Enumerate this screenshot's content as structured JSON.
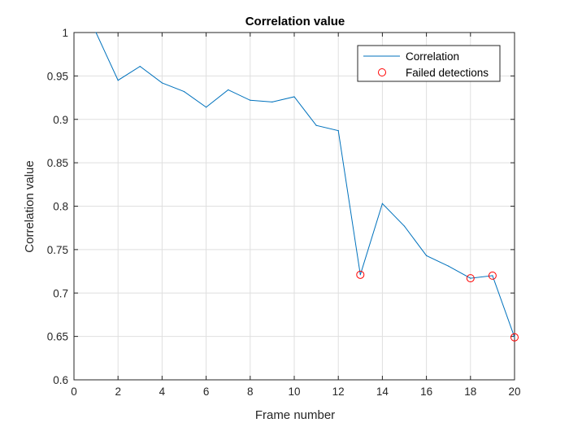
{
  "chart_data": {
    "type": "line",
    "title": "Correlation value",
    "xlabel": "Frame number",
    "ylabel": "Correlation value",
    "xlim": [
      0,
      20
    ],
    "ylim": [
      0.6,
      1
    ],
    "xticks": [
      0,
      2,
      4,
      6,
      8,
      10,
      12,
      14,
      16,
      18,
      20
    ],
    "yticks": [
      0.6,
      0.65,
      0.7,
      0.75,
      0.8,
      0.85,
      0.9,
      0.95,
      1
    ],
    "xtick_labels": [
      "0",
      "2",
      "4",
      "6",
      "8",
      "10",
      "12",
      "14",
      "16",
      "18",
      "20"
    ],
    "ytick_labels": [
      "0.6",
      "0.65",
      "0.7",
      "0.75",
      "0.8",
      "0.85",
      "0.9",
      "0.95",
      "1"
    ],
    "grid": true,
    "legend_position": "top-right",
    "series": [
      {
        "name": "Correlation",
        "style": "line",
        "color": "#0072bd",
        "x": [
          1,
          2,
          3,
          4,
          5,
          6,
          7,
          8,
          9,
          10,
          11,
          12,
          13,
          14,
          15,
          16,
          17,
          18,
          19,
          20
        ],
        "y": [
          1.0,
          0.945,
          0.961,
          0.942,
          0.932,
          0.914,
          0.934,
          0.922,
          0.92,
          0.926,
          0.893,
          0.887,
          0.721,
          0.803,
          0.777,
          0.743,
          0.731,
          0.717,
          0.72,
          0.649
        ]
      },
      {
        "name": "Failed detections",
        "style": "marker",
        "marker": "circle",
        "color": "#ff0000",
        "x": [
          13,
          18,
          19,
          20
        ],
        "y": [
          0.721,
          0.717,
          0.72,
          0.649
        ]
      }
    ]
  }
}
